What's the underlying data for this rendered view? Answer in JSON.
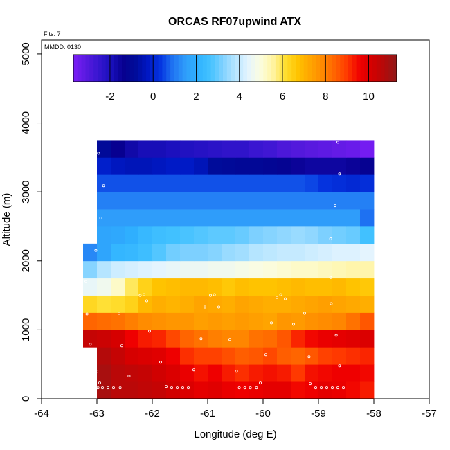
{
  "chart_data": {
    "type": "heatmap",
    "title": "ORCAS RF07upwind ATX",
    "flights_note": "Flts: 7",
    "date_note": "MMDD: 0130",
    "xlabel": "Longitude (deg E)",
    "ylabel": "Altitude (m)",
    "xlim": [
      -64,
      -57
    ],
    "ylim": [
      0,
      5200
    ],
    "xticks": [
      -64,
      -63,
      -62,
      -61,
      -60,
      -59,
      -58,
      -57
    ],
    "xtick_labels": [
      "-64",
      "-63",
      "-62",
      "-61",
      "-60",
      "-59",
      "-58",
      "-57"
    ],
    "yticks": [
      0,
      1000,
      2000,
      3000,
      4000,
      5000
    ],
    "ytick_labels": [
      "0",
      "1000",
      "2000",
      "3000",
      "4000",
      "5000"
    ],
    "grid": false,
    "colorbar": {
      "min": -3.7,
      "max": 11.3,
      "ticks": [
        -2,
        0,
        2,
        4,
        6,
        8,
        10
      ],
      "tick_labels": [
        "-2",
        "0",
        "2",
        "4",
        "6",
        "8",
        "10"
      ],
      "colors": [
        "#7a1df5",
        "#5a1ae0",
        "#3716cf",
        "#1a10bd",
        "#07008f",
        "#000c99",
        "#0018c4",
        "#0535e0",
        "#1f73f2",
        "#2f9dfa",
        "#2fb2ff",
        "#43c2ff",
        "#7fd1ff",
        "#b5e5ff",
        "#e3f4ff",
        "#fbfde0",
        "#fff5a8",
        "#ffe033",
        "#ffc400",
        "#ffa600",
        "#ff8a00",
        "#ff6400",
        "#ff3a00",
        "#f00000",
        "#d40000",
        "#b30a0a",
        "#8f1a1a"
      ]
    },
    "cell_lon_step": 0.25,
    "cell_alt_step": 250,
    "rows": [
      {
        "alt0": 0,
        "lon0": -63.0,
        "values": [
          10.9,
          10.6,
          10.6,
          10.5,
          10.4,
          10.2,
          10.0,
          9.8,
          9.9,
          9.7,
          9.6,
          9.7,
          9.8,
          9.8,
          9.5,
          9.6,
          9.8,
          9.7,
          9.5,
          9.3
        ]
      },
      {
        "alt0": 250,
        "lon0": -63.0,
        "values": [
          10.9,
          10.6,
          10.5,
          10.4,
          10.2,
          10.0,
          9.7,
          9.4,
          9.6,
          9.3,
          9.1,
          9.3,
          9.4,
          9.3,
          9.0,
          9.4,
          9.5,
          9.6,
          9.6,
          9.5
        ]
      },
      {
        "alt0": 500,
        "lon0": -63.0,
        "values": [
          10.7,
          10.4,
          10.1,
          10.0,
          9.9,
          9.6,
          9.1,
          8.9,
          8.9,
          8.7,
          8.5,
          8.6,
          8.8,
          8.5,
          8.4,
          8.6,
          8.9,
          9.0,
          9.1,
          9.2
        ]
      },
      {
        "alt0": 750,
        "lon0": -63.25,
        "values": [
          10.4,
          10.3,
          10.1,
          9.6,
          9.3,
          9.2,
          8.8,
          8.4,
          8.2,
          8.0,
          7.9,
          7.9,
          8.2,
          8.3,
          8.6,
          9.2,
          9.5,
          9.7,
          9.8,
          9.9,
          10.0
        ]
      },
      {
        "alt0": 1000,
        "lon0": -63.25,
        "values": [
          8.4,
          8.3,
          8.2,
          8.0,
          7.8,
          7.7,
          7.6,
          7.6,
          7.4,
          7.5,
          7.4,
          7.5,
          7.4,
          7.3,
          7.6,
          7.5,
          7.7,
          7.8,
          7.9,
          8.2,
          8.6
        ]
      },
      {
        "alt0": 1250,
        "lon0": -63.25,
        "values": [
          6.3,
          6.1,
          6.2,
          6.4,
          6.9,
          7.1,
          7.0,
          7.1,
          7.3,
          7.2,
          7.1,
          7.3,
          7.2,
          7.1,
          7.1,
          7.2,
          7.3,
          7.4,
          7.3,
          7.2,
          7.1
        ]
      },
      {
        "alt0": 1500,
        "lon0": -63.25,
        "values": [
          4.5,
          4.7,
          5.2,
          5.9,
          6.4,
          6.7,
          6.8,
          6.9,
          6.9,
          6.8,
          6.6,
          6.8,
          6.7,
          6.7,
          6.8,
          6.9,
          6.8,
          6.8,
          6.9,
          6.7,
          6.6
        ]
      },
      {
        "alt0": 1750,
        "lon0": -63.25,
        "values": [
          3.3,
          3.8,
          4.1,
          4.2,
          4.3,
          4.4,
          4.5,
          4.6,
          4.6,
          4.7,
          4.7,
          4.8,
          4.9,
          5.0,
          5.1,
          5.2,
          5.2,
          5.3,
          5.4,
          5.5,
          5.5
        ]
      },
      {
        "alt0": 2000,
        "lon0": -63.25,
        "values": [
          1.2,
          1.7,
          2.2,
          2.3,
          2.5,
          2.8,
          3.1,
          3.2,
          3.2,
          3.3,
          3.5,
          3.6,
          3.8,
          3.9,
          4.0,
          4.0,
          4.1,
          4.2,
          4.3,
          4.3,
          4.4
        ]
      },
      {
        "alt0": 2250,
        "lon0": -63.0,
        "values": [
          1.7,
          1.8,
          2.0,
          2.3,
          2.5,
          2.6,
          2.7,
          2.8,
          2.9,
          2.9,
          3.0,
          3.2,
          3.3,
          3.4,
          3.5,
          3.4,
          3.2,
          3.1,
          3.0,
          2.6
        ]
      },
      {
        "alt0": 2500,
        "lon0": -63.0,
        "values": [
          1.5,
          1.5,
          1.5,
          1.5,
          1.5,
          1.5,
          1.5,
          1.5,
          1.5,
          1.5,
          1.5,
          1.5,
          1.5,
          1.5,
          1.5,
          1.5,
          1.5,
          1.5,
          1.5,
          0.9
        ]
      },
      {
        "alt0": 2750,
        "lon0": -63.0,
        "values": [
          1.1,
          1.1,
          1.1,
          1.1,
          1.1,
          1.1,
          1.1,
          1.1,
          1.1,
          1.1,
          1.1,
          1.1,
          1.1,
          1.1,
          1.1,
          1.1,
          1.1,
          1.1,
          1.1,
          1.1
        ]
      },
      {
        "alt0": 3000,
        "lon0": -63.0,
        "values": [
          0.6,
          0.6,
          0.6,
          0.6,
          0.6,
          0.6,
          0.6,
          0.6,
          0.6,
          0.6,
          0.6,
          0.6,
          0.6,
          0.6,
          0.6,
          0.5,
          0.3,
          0.2,
          0.1,
          0.2
        ]
      },
      {
        "alt0": 3250,
        "lon0": -63.0,
        "values": [
          -0.1,
          -0.3,
          -0.4,
          -0.4,
          -0.3,
          -0.2,
          -0.2,
          -0.4,
          -0.8,
          -0.9,
          -1.0,
          -1.0,
          -1.1,
          -1.2,
          -1.5,
          -1.6,
          -1.6,
          -1.6,
          -1.5,
          -1.3
        ]
      },
      {
        "alt0": 3500,
        "lon0": -63.0,
        "values": [
          -0.9,
          -1.4,
          -1.7,
          -1.9,
          -1.9,
          -2.0,
          -2.1,
          -2.2,
          -2.3,
          -2.4,
          -2.4,
          -2.6,
          -2.7,
          -2.9,
          -3.0,
          -3.1,
          -3.2,
          -3.3,
          -3.4,
          -3.6
        ]
      }
    ],
    "sample_points": [
      [
        -62.97,
        3560
      ],
      [
        -58.65,
        3720
      ],
      [
        -62.88,
        3090
      ],
      [
        -58.62,
        3260
      ],
      [
        -62.93,
        2620
      ],
      [
        -58.7,
        2800
      ],
      [
        -63.02,
        2150
      ],
      [
        -58.78,
        2320
      ],
      [
        -63.2,
        1700
      ],
      [
        -58.78,
        1760
      ],
      [
        -63.18,
        1230
      ],
      [
        -62.6,
        1240
      ],
      [
        -62.22,
        1500
      ],
      [
        -62.15,
        1510
      ],
      [
        -62.1,
        1420
      ],
      [
        -60.95,
        1500
      ],
      [
        -60.88,
        1510
      ],
      [
        -61.05,
        1330
      ],
      [
        -60.8,
        1330
      ],
      [
        -59.75,
        1470
      ],
      [
        -59.68,
        1510
      ],
      [
        -59.6,
        1450
      ],
      [
        -59.25,
        1240
      ],
      [
        -58.77,
        1380
      ],
      [
        -59.45,
        1080
      ],
      [
        -59.85,
        1100
      ],
      [
        -62.05,
        980
      ],
      [
        -61.12,
        870
      ],
      [
        -60.6,
        860
      ],
      [
        -58.68,
        920
      ],
      [
        -63.12,
        790
      ],
      [
        -62.55,
        770
      ],
      [
        -59.17,
        610
      ],
      [
        -59.95,
        640
      ],
      [
        -61.85,
        530
      ],
      [
        -62.42,
        330
      ],
      [
        -61.25,
        420
      ],
      [
        -60.48,
        400
      ],
      [
        -63.0,
        400
      ],
      [
        -62.95,
        230
      ],
      [
        -63.02,
        150
      ],
      [
        -62.98,
        160
      ],
      [
        -62.9,
        160
      ],
      [
        -62.8,
        160
      ],
      [
        -62.7,
        160
      ],
      [
        -62.58,
        160
      ],
      [
        -61.75,
        180
      ],
      [
        -61.65,
        160
      ],
      [
        -61.55,
        160
      ],
      [
        -61.45,
        160
      ],
      [
        -61.35,
        160
      ],
      [
        -60.43,
        160
      ],
      [
        -60.33,
        160
      ],
      [
        -60.23,
        160
      ],
      [
        -60.12,
        160
      ],
      [
        -60.05,
        230
      ],
      [
        -59.15,
        220
      ],
      [
        -59.05,
        160
      ],
      [
        -58.95,
        160
      ],
      [
        -58.85,
        160
      ],
      [
        -58.75,
        160
      ],
      [
        -58.65,
        160
      ],
      [
        -58.55,
        160
      ],
      [
        -58.62,
        480
      ]
    ]
  }
}
